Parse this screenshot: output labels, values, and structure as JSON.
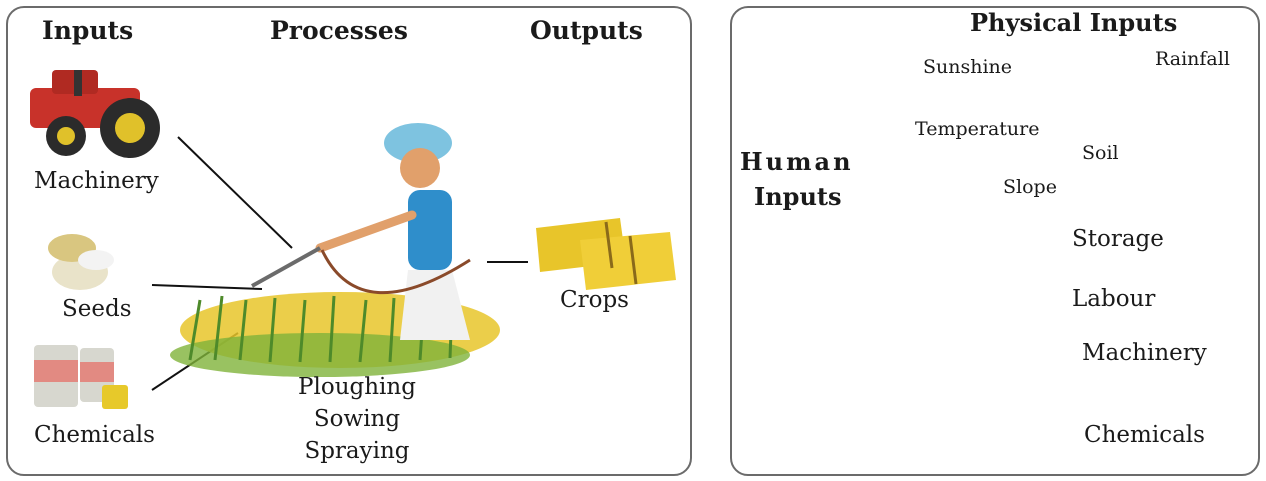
{
  "production_diagram": {
    "headers": {
      "inputs": "Inputs",
      "processes": "Processes",
      "outputs": "Outputs"
    },
    "inputs": [
      "Machinery",
      "Seeds",
      "Chemicals"
    ],
    "processes": [
      "Ploughing",
      "Sowing",
      "Spraying"
    ],
    "outputs": [
      "Crops"
    ]
  },
  "inputs_diagram": {
    "physical_inputs": {
      "title": "Physical Inputs",
      "labels": [
        "Sunshine",
        "Rainfall",
        "Temperature",
        "Soil",
        "Slope"
      ]
    },
    "human_inputs": {
      "title_line1": "Human",
      "title_line2": "Inputs",
      "labels": [
        "Storage",
        "Labour",
        "Machinery",
        "Chemicals"
      ]
    }
  },
  "colors": {
    "panel_border": "#6b6b6b",
    "sky": "#bfe6f7",
    "land": "#9cc23a",
    "sun": "#f5b21b",
    "rain": "#2aa6e0",
    "tractor": "#c8322a",
    "crop": "#e8c52a"
  }
}
